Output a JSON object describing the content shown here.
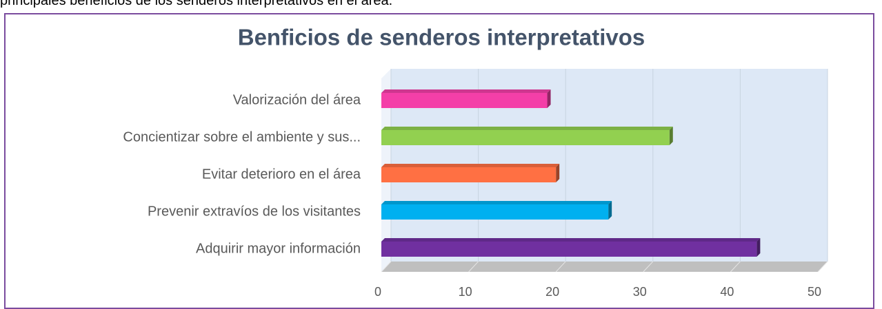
{
  "text_above": "principales beneficios de los senderos interpretativos en el área.",
  "chart_data": {
    "type": "bar",
    "orientation": "horizontal",
    "title": "Benficios de senderos interpretativos",
    "categories": [
      "Valorización del área",
      "Concientizar sobre el ambiente y sus...",
      "Evitar deterioro en el área",
      "Prevenir extravíos de los visitantes",
      "Adquirir mayor información"
    ],
    "values": [
      19,
      33,
      20,
      26,
      43
    ],
    "colors": [
      "#f43fa8",
      "#92d050",
      "#ff7043",
      "#00b0f0",
      "#7030a0"
    ],
    "xlim": [
      0,
      50
    ],
    "xticks": [
      0,
      10,
      20,
      30,
      40,
      50
    ],
    "grid": true
  }
}
